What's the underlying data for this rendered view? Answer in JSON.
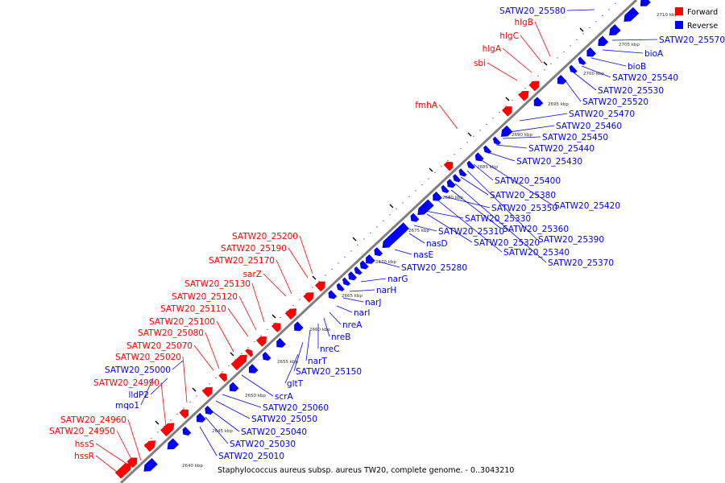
{
  "caption": "Staphylococcus aureus subsp. aureus TW20, complete genome. - 0..3043210",
  "legend": [
    {
      "label": "Forward",
      "color": "#ff0000"
    },
    {
      "label": "Reverse",
      "color": "#0000ff"
    }
  ],
  "colors": {
    "forward": "#ff0000",
    "reverse": "#0000ff",
    "backbone": "#808080",
    "tick": "#000000"
  },
  "scale_labels": [
    "2640 kbp",
    "2645 kbp",
    "2650 kbp",
    "2655 kbp",
    "2660 kbp",
    "2665 kbp",
    "2670 kbp",
    "2675 kbp",
    "2680 kbp",
    "2685 kbp",
    "2690 kbp",
    "2695 kbp",
    "2700 kbp",
    "2705 kbp",
    "2710 kbp"
  ],
  "forward_labels": [
    "hssR",
    "hssS",
    "SATW20_24950",
    "SATW20_24960",
    "SATW20_24990",
    "SATW20_25020",
    "SATW20_25070",
    "SATW20_25080",
    "SATW20_25100",
    "SATW20_25110",
    "SATW20_25120",
    "SATW20_25130",
    "sarZ",
    "SATW20_25170",
    "SATW20_25190",
    "SATW20_25200",
    "fmhA",
    "sbi",
    "hlgA",
    "hlgC",
    "hlgB"
  ],
  "reverse_labels": [
    "mqo1",
    "lldP2",
    "SATW20_25000",
    "SATW20_25010",
    "SATW20_25030",
    "SATW20_25040",
    "SATW20_25050",
    "SATW20_25060",
    "scrA",
    "gltT",
    "SATW20_25150",
    "narT",
    "nreC",
    "nreB",
    "nreA",
    "narI",
    "narJ",
    "narH",
    "narG",
    "SATW20_25280",
    "nasE",
    "nasD",
    "SATW20_25310",
    "SATW20_25320",
    "SATW20_25330",
    "SATW20_25340",
    "SATW20_25350",
    "SATW20_25360",
    "SATW20_25370",
    "SATW20_25380",
    "SATW20_25390",
    "SATW20_25400",
    "SATW20_25420",
    "SATW20_25430",
    "SATW20_25440",
    "SATW20_25450",
    "SATW20_25460",
    "SATW20_25470",
    "SATW20_25520",
    "SATW20_25530",
    "SATW20_25540",
    "bioB",
    "bioA",
    "SATW20_25570",
    "SATW20_25580"
  ]
}
